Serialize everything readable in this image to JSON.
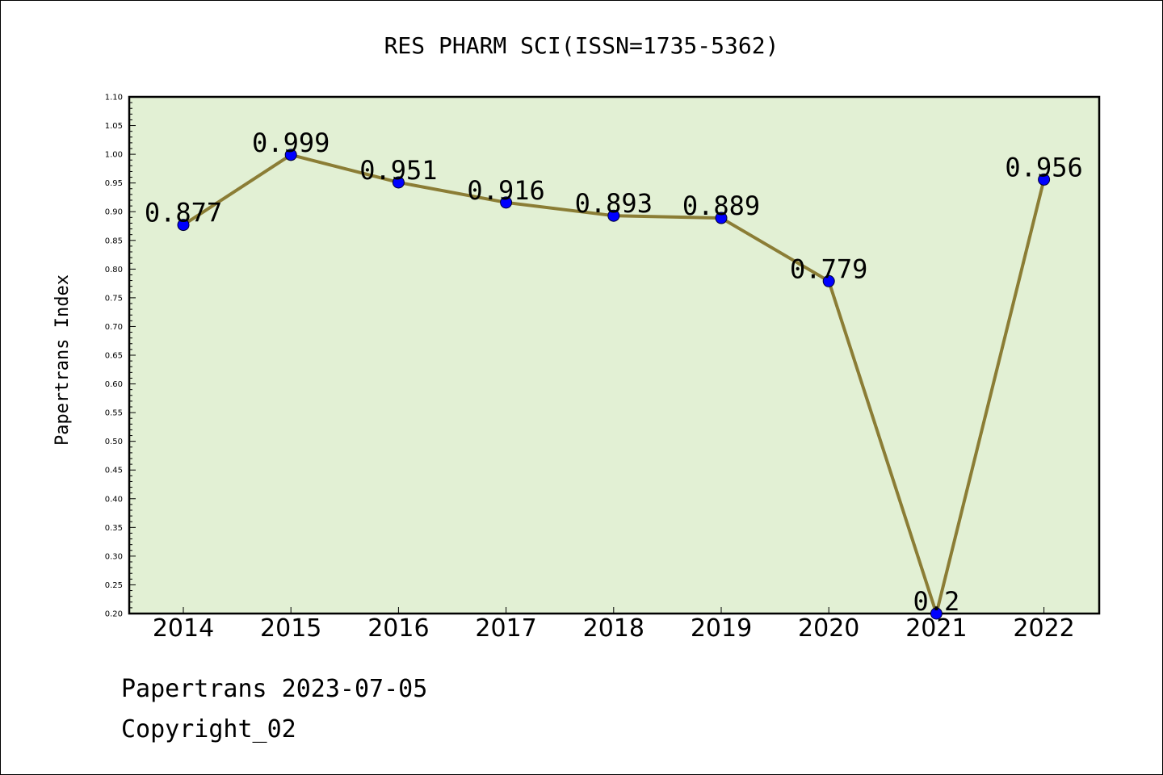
{
  "chart_data": {
    "type": "line",
    "title": "RES PHARM SCI(ISSN=1735-5362)",
    "xlabel": "",
    "ylabel": "Papertrans Index",
    "categories": [
      "2014",
      "2015",
      "2016",
      "2017",
      "2018",
      "2019",
      "2020",
      "2021",
      "2022"
    ],
    "series": [
      {
        "values": [
          0.877,
          0.999,
          0.951,
          0.916,
          0.893,
          0.889,
          0.779,
          0.2,
          0.956
        ],
        "labels": [
          "0.877",
          "0.999",
          "0.951",
          "0.916",
          "0.893",
          "0.889",
          "0.779",
          "0.2",
          "0.956"
        ],
        "line_color": "#8b7d35",
        "marker_color": "#0000ff"
      }
    ],
    "ylim": [
      0.2,
      1.1
    ],
    "yticks": [
      "0.20",
      "0.25",
      "0.30",
      "0.35",
      "0.40",
      "0.45",
      "0.50",
      "0.55",
      "0.60",
      "0.65",
      "0.70",
      "0.75",
      "0.80",
      "0.85",
      "0.90",
      "0.95",
      "1.00",
      "1.05",
      "1.10"
    ],
    "plot_background": "#e2f0d4",
    "grid": false,
    "legend": "none"
  },
  "footer": {
    "date_text": "Papertrans 2023-07-05",
    "copyright_text": "Copyright_02"
  }
}
